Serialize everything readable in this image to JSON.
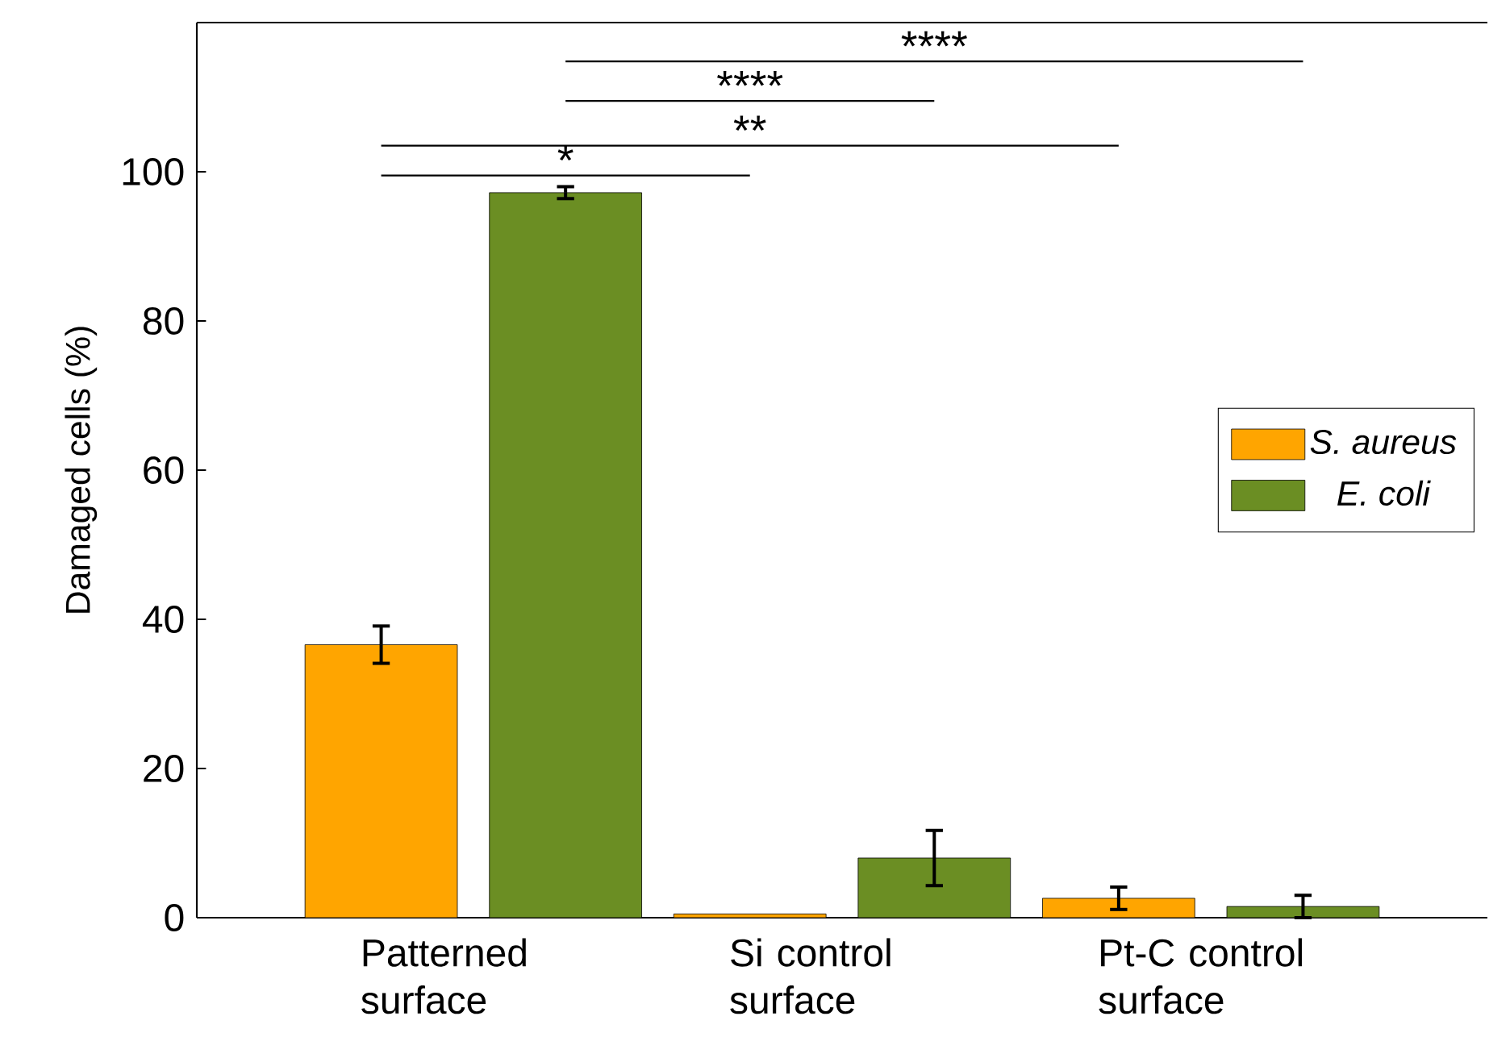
{
  "chart_data": {
    "type": "bar",
    "categories": [
      "Patterned surface",
      "Si control surface",
      "Pt-C control surface"
    ],
    "ylabel": "Damaged cells (%)",
    "series": [
      {
        "name": "S. aureus",
        "color": "#ffa500",
        "values": [
          36.6,
          0.5,
          2.6
        ],
        "errors": [
          2.5,
          null,
          1.5
        ]
      },
      {
        "name": "E. coli",
        "color": "#6b8e23",
        "values": [
          97.2,
          8.0,
          1.5
        ],
        "errors": [
          0.8,
          3.7,
          1.5
        ]
      }
    ],
    "ylim": [
      0,
      120
    ],
    "yticks": [
      0,
      20,
      40,
      60,
      80,
      100
    ],
    "legend": "right",
    "annotations": [
      "*",
      "**",
      "****",
      "****"
    ]
  }
}
